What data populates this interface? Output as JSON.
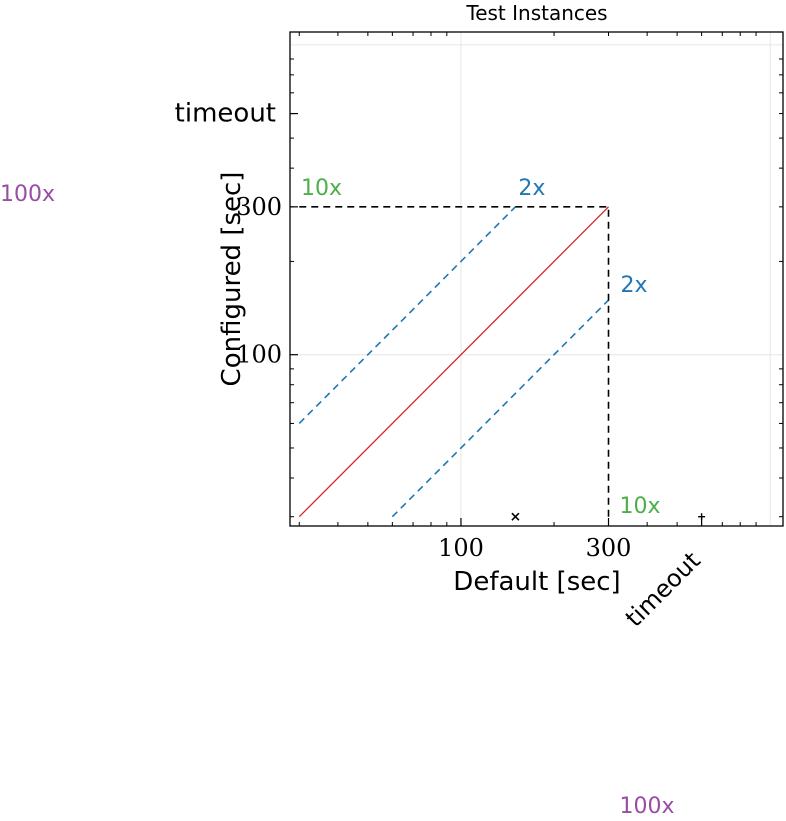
{
  "chart_data": {
    "type": "scatter",
    "title": "Test Instances",
    "xlabel": "Default [sec]",
    "ylabel": "Configured [sec]",
    "x_scale": "log",
    "y_scale": "log",
    "xlim": [
      28,
      1100
    ],
    "ylim": [
      28,
      1100
    ],
    "grid": true,
    "x_ticks": [
      {
        "value": 100,
        "label": "100"
      },
      {
        "value": 300,
        "label": "300"
      },
      {
        "value": 600,
        "label": "timeout"
      }
    ],
    "y_ticks": [
      {
        "value": 100,
        "label": "100"
      },
      {
        "value": 300,
        "label": "300"
      },
      {
        "value": 600,
        "label": "timeout"
      }
    ],
    "reference_lines": [
      {
        "kind": "diagonal",
        "from": [
          30,
          30
        ],
        "to": [
          300,
          300
        ],
        "color": "#d62728",
        "style": "solid"
      },
      {
        "kind": "factor",
        "factor": 2,
        "from": [
          30,
          60
        ],
        "to": [
          150,
          300
        ],
        "label": "2x",
        "color": "#1f77b4",
        "style": "dashed"
      },
      {
        "kind": "factor",
        "factor": 0.5,
        "from": [
          60,
          30
        ],
        "to": [
          300,
          150
        ],
        "label": "2x",
        "color": "#1f77b4",
        "style": "dashed"
      },
      {
        "kind": "cutoff",
        "from": [
          30,
          300
        ],
        "to": [
          300,
          300
        ],
        "color": "#000000",
        "style": "dashed"
      },
      {
        "kind": "cutoff",
        "from": [
          300,
          30
        ],
        "to": [
          300,
          300
        ],
        "color": "#000000",
        "style": "dashed"
      }
    ],
    "factor_labels": [
      {
        "text": "10x",
        "color": "#4daf4a",
        "anchor": "upper-left"
      },
      {
        "text": "10x",
        "color": "#4daf4a",
        "anchor": "lower-right"
      },
      {
        "text": "100x",
        "color": "#984ea3",
        "anchor": "outside-left"
      },
      {
        "text": "100x",
        "color": "#984ea3",
        "anchor": "outside-bottom"
      }
    ],
    "series": [
      {
        "marker": "x",
        "points": [
          [
            150,
            30
          ]
        ]
      },
      {
        "marker": "+",
        "points": [
          [
            600,
            30
          ]
        ]
      }
    ]
  }
}
